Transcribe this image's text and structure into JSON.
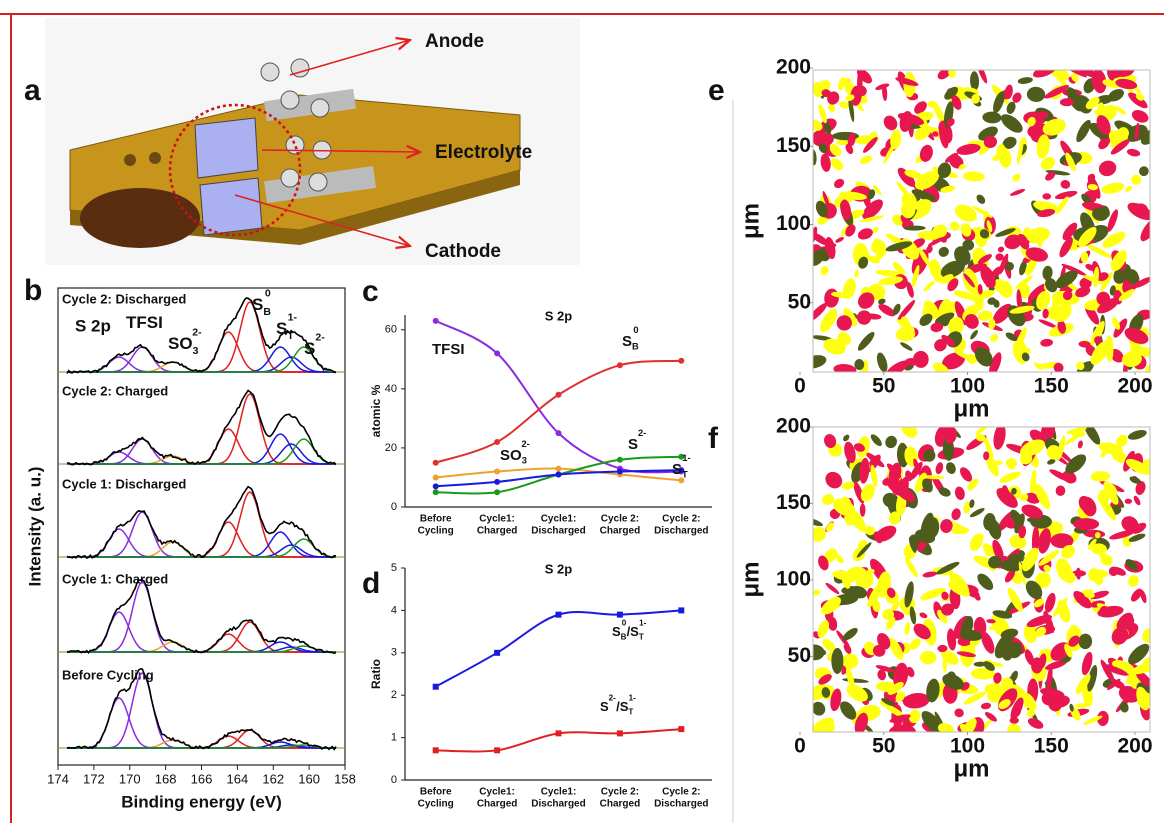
{
  "panel_labels": [
    "a",
    "b",
    "c",
    "d",
    "e",
    "f"
  ],
  "device": {
    "labels": [
      "Anode",
      "Electrolyte",
      "Cathode"
    ]
  },
  "chart_data": [
    {
      "type": "spectra",
      "title": "S 2p",
      "xlabel": "Binding energy (eV)",
      "ylabel": "Intensity (a. u.)",
      "xlim": [
        174,
        158
      ],
      "xticks": [
        174,
        172,
        170,
        168,
        166,
        164,
        162,
        160,
        158
      ],
      "traces": [
        "Cycle 2: Discharged",
        "Cycle 2: Charged",
        "Cycle 1: Discharged",
        "Cycle 1: Charged",
        "Before Cycling"
      ],
      "peak_labels": [
        {
          "color": "#8a2be2",
          "name": [
            {
              "text": "TFSI"
            }
          ]
        },
        {
          "color": "#f0a030",
          "name": [
            {
              "text": "SO",
              "sub": "3",
              "sup": "2-"
            }
          ]
        },
        {
          "color": "#e02020",
          "name": [
            {
              "text": "S",
              "sub": "B",
              "sup": "0"
            }
          ]
        },
        {
          "color": "#1a1adf",
          "name": [
            {
              "text": "S",
              "sub": "T",
              "sup": "1-"
            }
          ]
        },
        {
          "color": "#1a9a1a",
          "name": [
            {
              "text": "S",
              "sup": "2-"
            }
          ]
        }
      ]
    },
    {
      "type": "line",
      "title": "S 2p",
      "ylabel": "atomic %",
      "categories": [
        [
          "Before",
          "Cycling"
        ],
        [
          "Cycle1:",
          "Charged"
        ],
        [
          "Cycle1:",
          "Discharged"
        ],
        [
          "Cycle 2:",
          "Charged"
        ],
        [
          "Cycle 2:",
          "Discharged"
        ]
      ],
      "ylim": [
        0,
        65
      ],
      "yticks": [
        0,
        20,
        40,
        60
      ],
      "series": [
        {
          "name": [
            {
              "text": "TFSI"
            }
          ],
          "color": "#8a2be2",
          "values": [
            63,
            52,
            25,
            13,
            12
          ]
        },
        {
          "name": [
            {
              "text": "S",
              "sub": "B",
              "sup": "0"
            }
          ],
          "color": "#e03030",
          "values": [
            15,
            22,
            38,
            48,
            49.5
          ]
        },
        {
          "name": [
            {
              "text": "SO",
              "sub": "3",
              "sup": "2-"
            }
          ],
          "color": "#f0a030",
          "values": [
            10,
            12,
            13,
            11,
            9
          ]
        },
        {
          "name": [
            {
              "text": "S",
              "sup": "2-"
            }
          ],
          "color": "#1a9a1a",
          "values": [
            5,
            5,
            11,
            16,
            17
          ]
        },
        {
          "name": [
            {
              "text": "S",
              "sub": "T",
              "sup": "1-"
            }
          ],
          "color": "#1a1adf",
          "values": [
            7,
            8.5,
            11,
            12,
            12.5
          ]
        }
      ]
    },
    {
      "type": "line",
      "title": "S 2p",
      "ylabel": "Ratio",
      "categories": [
        [
          "Before",
          "Cycling"
        ],
        [
          "Cycle1:",
          "Charged"
        ],
        [
          "Cycle1:",
          "Discharged"
        ],
        [
          "Cycle 2:",
          "Charged"
        ],
        [
          "Cycle 2:",
          "Discharged"
        ]
      ],
      "ylim": [
        0,
        5
      ],
      "yticks": [
        0,
        1,
        2,
        3,
        4,
        5
      ],
      "series": [
        {
          "name": [
            {
              "text": "S",
              "sub": "B",
              "sup": "0"
            },
            {
              "text": "/S",
              "sub": "T",
              "sup": "1-"
            }
          ],
          "color": "#1a1adf",
          "values": [
            2.2,
            3.0,
            3.9,
            3.9,
            4.0
          ]
        },
        {
          "name": [
            {
              "text": "S",
              "sup": "2-"
            },
            {
              "text": "/S",
              "sub": "T",
              "sup": "1-"
            }
          ],
          "color": "#e02020",
          "values": [
            0.7,
            0.7,
            1.1,
            1.1,
            1.2
          ]
        }
      ]
    },
    {
      "type": "map",
      "xlabel": "μm",
      "ylabel": "μm",
      "xlim": [
        0,
        200
      ],
      "ylim": [
        0,
        200
      ],
      "xticks": [
        0,
        50,
        100,
        150,
        200
      ],
      "yticks": [
        50,
        100,
        150,
        200
      ],
      "colors": [
        "#ffff10",
        "#e8174f",
        "#4e5c1c"
      ]
    },
    {
      "type": "map",
      "xlabel": "μm",
      "ylabel": "μm",
      "xlim": [
        0,
        200
      ],
      "ylim": [
        0,
        200
      ],
      "xticks": [
        0,
        50,
        100,
        150,
        200
      ],
      "yticks": [
        50,
        100,
        150,
        200
      ],
      "colors": [
        "#ffff10",
        "#e8174f",
        "#4e5c1c"
      ]
    }
  ]
}
